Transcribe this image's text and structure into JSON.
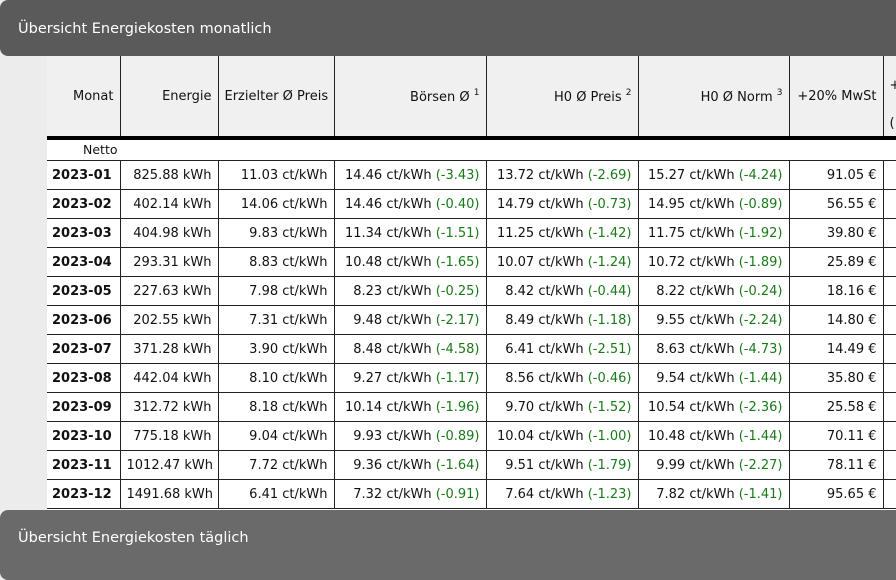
{
  "panels": {
    "monthly_title": "Übersicht Energiekosten monatlich",
    "daily_title": "Übersicht Energiekosten täglich"
  },
  "table": {
    "headers": {
      "monat": "Monat",
      "energie": "Energie",
      "preis": "Erzielter Ø Preis",
      "boersen": "Börsen Ø",
      "boersen_sup": "1",
      "h0_preis": "H0 Ø Preis",
      "h0_preis_sup": "2",
      "h0_norm": "H0 Ø Norm",
      "h0_norm_sup": "3",
      "mwst": "+20% MwSt",
      "extra_plus": "+",
      "extra_paren": "("
    },
    "subheader": "Netto",
    "rows": [
      {
        "month": "2023-01",
        "energy": "825.88 kWh",
        "price": "11.03 ct/kWh",
        "boersen": "14.46 ct/kWh",
        "boersen_delta": "(-3.43)",
        "h0_price": "13.72 ct/kWh",
        "h0_price_delta": "(-2.69)",
        "h0_norm": "15.27 ct/kWh",
        "h0_norm_delta": "(-4.24)",
        "mwst": "91.05 €"
      },
      {
        "month": "2023-02",
        "energy": "402.14 kWh",
        "price": "14.06 ct/kWh",
        "boersen": "14.46 ct/kWh",
        "boersen_delta": "(-0.40)",
        "h0_price": "14.79 ct/kWh",
        "h0_price_delta": "(-0.73)",
        "h0_norm": "14.95 ct/kWh",
        "h0_norm_delta": "(-0.89)",
        "mwst": "56.55 €"
      },
      {
        "month": "2023-03",
        "energy": "404.98 kWh",
        "price": "9.83 ct/kWh",
        "boersen": "11.34 ct/kWh",
        "boersen_delta": "(-1.51)",
        "h0_price": "11.25 ct/kWh",
        "h0_price_delta": "(-1.42)",
        "h0_norm": "11.75 ct/kWh",
        "h0_norm_delta": "(-1.92)",
        "mwst": "39.80 €"
      },
      {
        "month": "2023-04",
        "energy": "293.31 kWh",
        "price": "8.83 ct/kWh",
        "boersen": "10.48 ct/kWh",
        "boersen_delta": "(-1.65)",
        "h0_price": "10.07 ct/kWh",
        "h0_price_delta": "(-1.24)",
        "h0_norm": "10.72 ct/kWh",
        "h0_norm_delta": "(-1.89)",
        "mwst": "25.89 €"
      },
      {
        "month": "2023-05",
        "energy": "227.63 kWh",
        "price": "7.98 ct/kWh",
        "boersen": "8.23 ct/kWh",
        "boersen_delta": "(-0.25)",
        "h0_price": "8.42 ct/kWh",
        "h0_price_delta": "(-0.44)",
        "h0_norm": "8.22 ct/kWh",
        "h0_norm_delta": "(-0.24)",
        "mwst": "18.16 €"
      },
      {
        "month": "2023-06",
        "energy": "202.55 kWh",
        "price": "7.31 ct/kWh",
        "boersen": "9.48 ct/kWh",
        "boersen_delta": "(-2.17)",
        "h0_price": "8.49 ct/kWh",
        "h0_price_delta": "(-1.18)",
        "h0_norm": "9.55 ct/kWh",
        "h0_norm_delta": "(-2.24)",
        "mwst": "14.80 €"
      },
      {
        "month": "2023-07",
        "energy": "371.28 kWh",
        "price": "3.90 ct/kWh",
        "boersen": "8.48 ct/kWh",
        "boersen_delta": "(-4.58)",
        "h0_price": "6.41 ct/kWh",
        "h0_price_delta": "(-2.51)",
        "h0_norm": "8.63 ct/kWh",
        "h0_norm_delta": "(-4.73)",
        "mwst": "14.49 €"
      },
      {
        "month": "2023-08",
        "energy": "442.04 kWh",
        "price": "8.10 ct/kWh",
        "boersen": "9.27 ct/kWh",
        "boersen_delta": "(-1.17)",
        "h0_price": "8.56 ct/kWh",
        "h0_price_delta": "(-0.46)",
        "h0_norm": "9.54 ct/kWh",
        "h0_norm_delta": "(-1.44)",
        "mwst": "35.80 €"
      },
      {
        "month": "2023-09",
        "energy": "312.72 kWh",
        "price": "8.18 ct/kWh",
        "boersen": "10.14 ct/kWh",
        "boersen_delta": "(-1.96)",
        "h0_price": "9.70 ct/kWh",
        "h0_price_delta": "(-1.52)",
        "h0_norm": "10.54 ct/kWh",
        "h0_norm_delta": "(-2.36)",
        "mwst": "25.58 €"
      },
      {
        "month": "2023-10",
        "energy": "775.18 kWh",
        "price": "9.04 ct/kWh",
        "boersen": "9.93 ct/kWh",
        "boersen_delta": "(-0.89)",
        "h0_price": "10.04 ct/kWh",
        "h0_price_delta": "(-1.00)",
        "h0_norm": "10.48 ct/kWh",
        "h0_norm_delta": "(-1.44)",
        "mwst": "70.11 €"
      },
      {
        "month": "2023-11",
        "energy": "1012.47 kWh",
        "price": "7.72 ct/kWh",
        "boersen": "9.36 ct/kWh",
        "boersen_delta": "(-1.64)",
        "h0_price": "9.51 ct/kWh",
        "h0_price_delta": "(-1.79)",
        "h0_norm": "9.99 ct/kWh",
        "h0_norm_delta": "(-2.27)",
        "mwst": "78.11 €"
      },
      {
        "month": "2023-12",
        "energy": "1491.68 kWh",
        "price": "6.41 ct/kWh",
        "boersen": "7.32 ct/kWh",
        "boersen_delta": "(-0.91)",
        "h0_price": "7.64 ct/kWh",
        "h0_price_delta": "(-1.23)",
        "h0_norm": "7.82 ct/kWh",
        "h0_norm_delta": "(-1.41)",
        "mwst": "95.65 €"
      }
    ]
  },
  "colors": {
    "panel_bg": "#5a5a5a",
    "delta_green": "#1a7a1a"
  }
}
